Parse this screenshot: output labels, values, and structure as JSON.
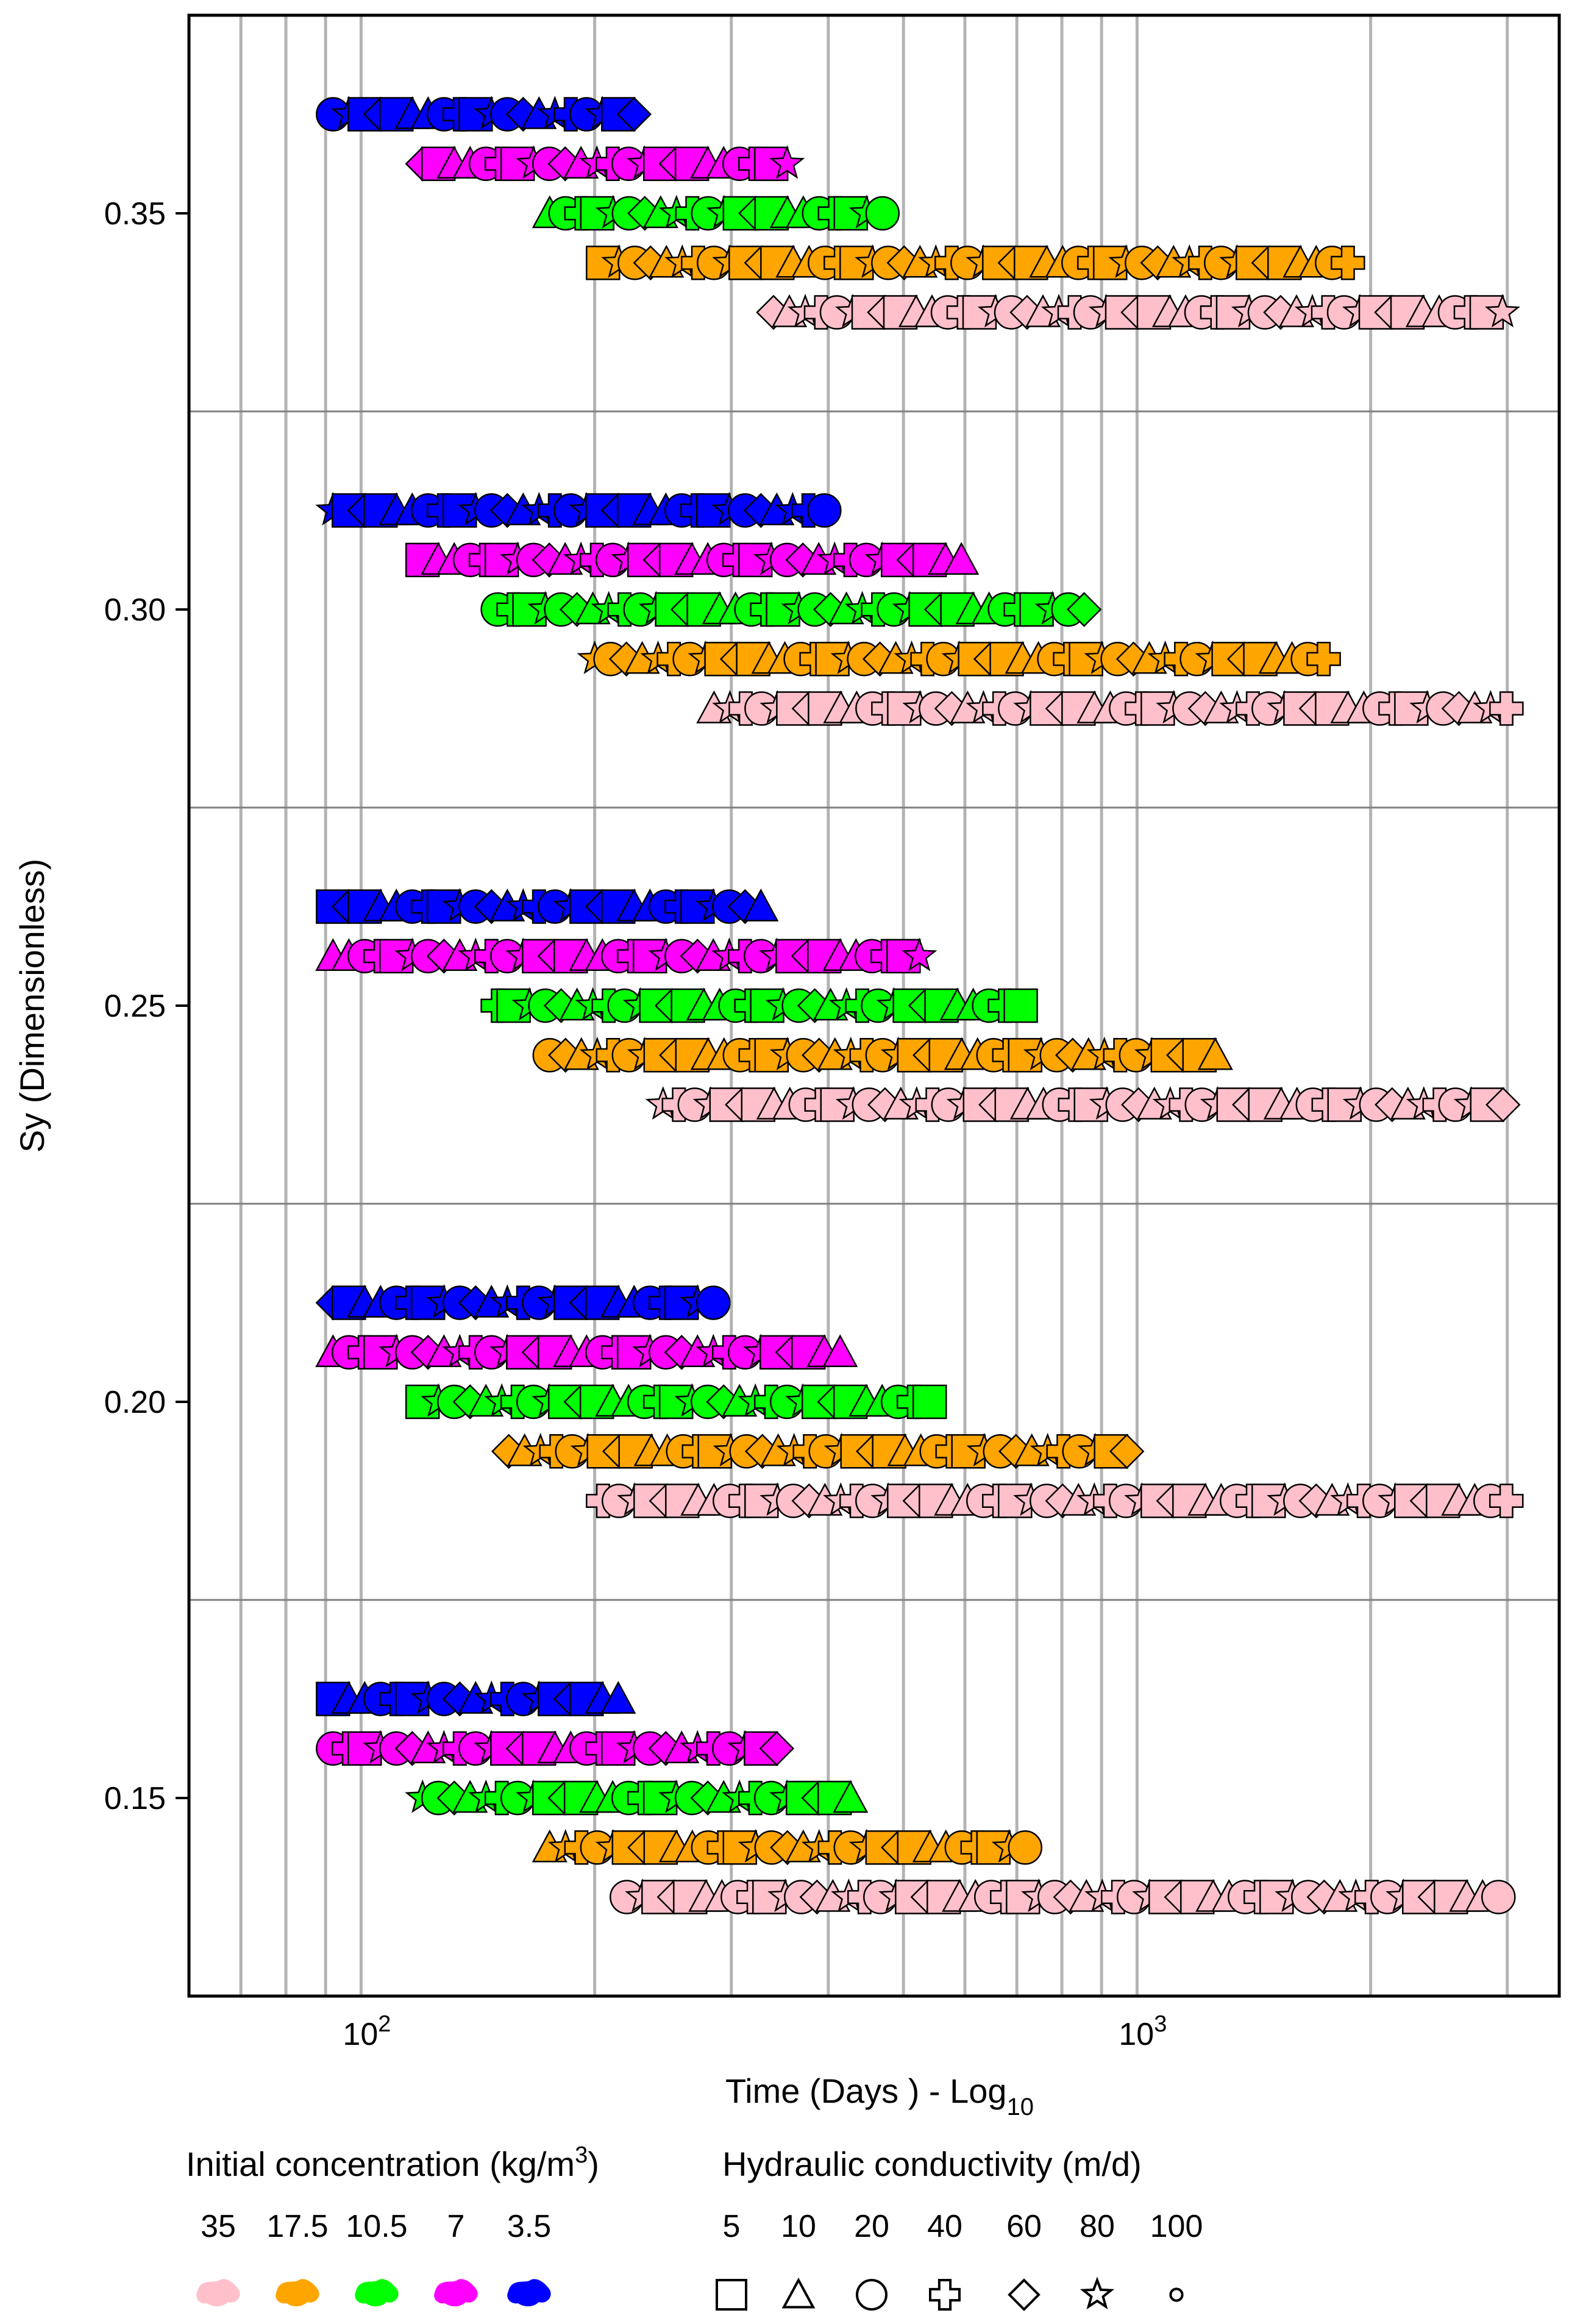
{
  "chart_data": {
    "type": "scatter",
    "title": "",
    "xlabel": "Time (Days ) - Log",
    "xlabel_sub": "10",
    "ylabel": "Sy (Dimensionless)",
    "x_scale": "log",
    "xlim": [
      60,
      3500
    ],
    "ylim": [
      0.125,
      0.375
    ],
    "x_ticks": [
      {
        "base": "10",
        "exp": "2"
      },
      {
        "base": "10",
        "exp": "3"
      }
    ],
    "y_ticks": [
      "0.15",
      "0.20",
      "0.25",
      "0.30",
      "0.35"
    ],
    "y_tick_values": [
      0.15,
      0.2,
      0.25,
      0.3,
      0.35
    ],
    "grid": "vertical log lines, horizontal separators between Sy groups",
    "sy_groups": [
      0.15,
      0.2,
      0.25,
      0.3,
      0.35
    ],
    "series": [
      {
        "name": "35",
        "color": "#FFC0CB"
      },
      {
        "name": "17.5",
        "color": "#FFA500"
      },
      {
        "name": "10.5",
        "color": "#00FF00"
      },
      {
        "name": "7",
        "color": "#FF00FF"
      },
      {
        "name": "3.5",
        "color": "#0000FF"
      }
    ],
    "time_ranges_days": [
      {
        "sy": 0.15,
        "conc": "3.5",
        "start": 92,
        "end": 215
      },
      {
        "sy": 0.15,
        "conc": "7",
        "start": 92,
        "end": 345
      },
      {
        "sy": 0.15,
        "conc": "10.5",
        "start": 120,
        "end": 430
      },
      {
        "sy": 0.15,
        "conc": "17.5",
        "start": 175,
        "end": 750
      },
      {
        "sy": 0.15,
        "conc": "35",
        "start": 220,
        "end": 3050
      },
      {
        "sy": 0.2,
        "conc": "3.5",
        "start": 92,
        "end": 285
      },
      {
        "sy": 0.2,
        "conc": "7",
        "start": 92,
        "end": 430
      },
      {
        "sy": 0.2,
        "conc": "10.5",
        "start": 120,
        "end": 550
      },
      {
        "sy": 0.2,
        "conc": "17.5",
        "start": 155,
        "end": 975
      },
      {
        "sy": 0.2,
        "conc": "35",
        "start": 205,
        "end": 3050
      },
      {
        "sy": 0.25,
        "conc": "3.5",
        "start": 92,
        "end": 340
      },
      {
        "sy": 0.25,
        "conc": "7",
        "start": 92,
        "end": 530
      },
      {
        "sy": 0.25,
        "conc": "10.5",
        "start": 150,
        "end": 720
      },
      {
        "sy": 0.25,
        "conc": "17.5",
        "start": 175,
        "end": 1310
      },
      {
        "sy": 0.25,
        "conc": "35",
        "start": 245,
        "end": 3050
      },
      {
        "sy": 0.3,
        "conc": "3.5",
        "start": 92,
        "end": 400
      },
      {
        "sy": 0.3,
        "conc": "7",
        "start": 120,
        "end": 620
      },
      {
        "sy": 0.3,
        "conc": "10.5",
        "start": 150,
        "end": 870
      },
      {
        "sy": 0.3,
        "conc": "17.5",
        "start": 200,
        "end": 1750
      },
      {
        "sy": 0.3,
        "conc": "35",
        "start": 285,
        "end": 3050
      },
      {
        "sy": 0.35,
        "conc": "3.5",
        "start": 92,
        "end": 230
      },
      {
        "sy": 0.35,
        "conc": "7",
        "start": 120,
        "end": 360
      },
      {
        "sy": 0.35,
        "conc": "10.5",
        "start": 175,
        "end": 470
      },
      {
        "sy": 0.35,
        "conc": "17.5",
        "start": 205,
        "end": 1900
      },
      {
        "sy": 0.35,
        "conc": "35",
        "start": 340,
        "end": 3050
      }
    ],
    "legend_placement": "bottom"
  },
  "legend": {
    "concentration": {
      "title": "Initial concentration (kg/m",
      "title_sup": "3",
      "title_end": ")",
      "values": [
        "35",
        "17.5",
        "10.5",
        "7",
        "3.5"
      ],
      "colors": [
        "#FFC0CB",
        "#FFA500",
        "#00FF00",
        "#FF00FF",
        "#0000FF"
      ]
    },
    "conductivity": {
      "title": "Hydraulic conductivity (m/d)",
      "values": [
        "5",
        "10",
        "20",
        "40",
        "60",
        "80",
        "100"
      ],
      "shapes": [
        "square",
        "triangle",
        "circle",
        "cross",
        "diamond",
        "star",
        "small-circle"
      ]
    }
  }
}
